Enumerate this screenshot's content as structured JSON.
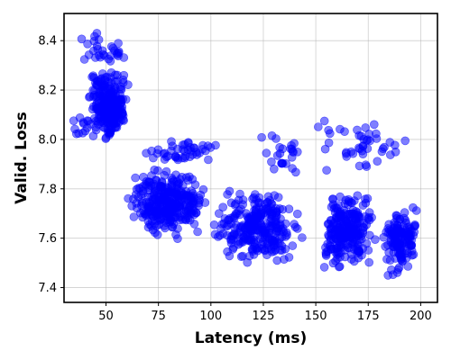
{
  "chart_data": {
    "type": "scatter",
    "xlabel": "Latency (ms)",
    "ylabel": "Valid. Loss",
    "xlim": [
      30,
      208
    ],
    "ylim": [
      7.34,
      8.51
    ],
    "x_ticks": [
      50,
      75,
      100,
      125,
      150,
      175,
      200
    ],
    "y_ticks": [
      7.4,
      7.6,
      7.8,
      8.0,
      8.2,
      8.4
    ],
    "x_tick_labels": [
      "50",
      "75",
      "100",
      "125",
      "150",
      "175",
      "200"
    ],
    "y_tick_labels": [
      "7.4",
      "7.6",
      "7.8",
      "8.0",
      "8.2",
      "8.4"
    ],
    "grid": true,
    "marker_color": "#0000ff",
    "marker_alpha": 0.5,
    "clusters": [
      {
        "x_range": [
          40,
          62
        ],
        "y_range": [
          7.98,
          8.3
        ],
        "count": 260
      },
      {
        "x_range": [
          35,
          62
        ],
        "y_range": [
          8.28,
          8.45
        ],
        "count": 30
      },
      {
        "x_range": [
          33,
          45
        ],
        "y_range": [
          7.98,
          8.12
        ],
        "count": 12
      },
      {
        "x_range": [
          58,
          100
        ],
        "y_range": [
          7.58,
          7.9
        ],
        "count": 320
      },
      {
        "x_range": [
          65,
          110
        ],
        "y_range": [
          7.9,
          8.0
        ],
        "count": 45
      },
      {
        "x_range": [
          100,
          145
        ],
        "y_range": [
          7.48,
          7.82
        ],
        "count": 280
      },
      {
        "x_range": [
          150,
          180
        ],
        "y_range": [
          7.45,
          7.82
        ],
        "count": 250
      },
      {
        "x_range": [
          180,
          200
        ],
        "y_range": [
          7.42,
          7.75
        ],
        "count": 140
      },
      {
        "x_range": [
          145,
          200
        ],
        "y_range": [
          7.85,
          8.1
        ],
        "count": 45
      },
      {
        "x_range": [
          120,
          150
        ],
        "y_range": [
          7.85,
          8.05
        ],
        "count": 25
      }
    ]
  }
}
